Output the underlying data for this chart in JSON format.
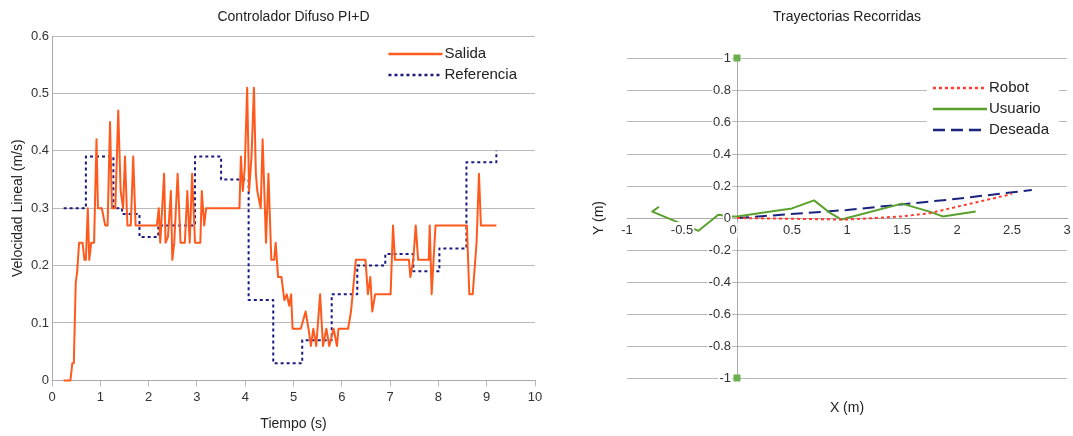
{
  "chart_data": [
    {
      "type": "line",
      "title": "Controlador Difuso PI+D",
      "xlabel": "Tiempo (s)",
      "ylabel": "Velocidad Lineal (m/s)",
      "xlim": [
        0,
        10
      ],
      "xticks": [
        0,
        1,
        2,
        3,
        4,
        5,
        6,
        7,
        8,
        9,
        10
      ],
      "ylim": [
        0,
        0.6
      ],
      "yticks": [
        0,
        0.1,
        0.2,
        0.3,
        0.4,
        0.5,
        0.6
      ],
      "grid": "y",
      "legend": "top right",
      "marker": "none",
      "series": [
        {
          "name": "Salida",
          "color": "#ff5a1e",
          "line_style": "solid",
          "x": [
            0.24,
            0.38,
            0.42,
            0.45,
            0.49,
            0.52,
            0.56,
            0.63,
            0.67,
            0.7,
            0.74,
            0.77,
            0.81,
            0.87,
            0.92,
            0.95,
            1.03,
            1.1,
            1.15,
            1.2,
            1.24,
            1.31,
            1.37,
            1.42,
            1.47,
            1.51,
            1.56,
            1.63,
            1.68,
            1.73,
            2.17,
            2.21,
            2.24,
            2.32,
            2.35,
            2.4,
            2.46,
            2.49,
            2.53,
            2.6,
            2.66,
            2.75,
            2.8,
            2.85,
            2.9,
            2.96,
            3.07,
            3.1,
            3.15,
            3.19,
            3.25,
            3.88,
            3.91,
            3.95,
            3.99,
            4.04,
            4.08,
            4.13,
            4.18,
            4.22,
            4.25,
            4.32,
            4.36,
            4.43,
            4.48,
            4.54,
            4.6,
            4.63,
            4.68,
            4.75,
            4.81,
            4.86,
            4.91,
            4.95,
            4.98,
            5.15,
            5.25,
            5.31,
            5.36,
            5.41,
            5.47,
            5.55,
            5.61,
            5.68,
            5.74,
            5.83,
            5.9,
            5.93,
            6.13,
            6.19,
            6.29,
            6.49,
            6.54,
            6.59,
            6.63,
            6.69,
            7.01,
            7.06,
            7.1,
            7.39,
            7.42,
            7.48,
            7.53,
            7.58,
            7.8,
            7.82,
            7.86,
            7.94,
            8.59,
            8.64,
            8.71,
            8.79,
            8.84,
            8.88,
            9.2
          ],
          "values": [
            0,
            0,
            0.03,
            0.03,
            0.17,
            0.19,
            0.24,
            0.24,
            0.21,
            0.21,
            0.3,
            0.21,
            0.24,
            0.24,
            0.42,
            0.3,
            0.3,
            0.27,
            0.27,
            0.45,
            0.3,
            0.3,
            0.47,
            0.33,
            0.3,
            0.39,
            0.27,
            0.27,
            0.39,
            0.27,
            0.27,
            0.3,
            0.24,
            0.36,
            0.24,
            0.25,
            0.33,
            0.21,
            0.24,
            0.36,
            0.24,
            0.24,
            0.33,
            0.24,
            0.36,
            0.24,
            0.24,
            0.33,
            0.27,
            0.3,
            0.3,
            0.3,
            0.39,
            0.33,
            0.37,
            0.51,
            0.33,
            0.39,
            0.51,
            0.36,
            0.33,
            0.3,
            0.42,
            0.24,
            0.36,
            0.21,
            0.21,
            0.24,
            0.18,
            0.18,
            0.14,
            0.15,
            0.13,
            0.15,
            0.09,
            0.09,
            0.12,
            0.09,
            0.06,
            0.09,
            0.06,
            0.15,
            0.06,
            0.09,
            0.06,
            0.09,
            0.06,
            0.09,
            0.09,
            0.12,
            0.21,
            0.21,
            0.15,
            0.18,
            0.12,
            0.15,
            0.15,
            0.27,
            0.21,
            0.21,
            0.18,
            0.21,
            0.27,
            0.21,
            0.21,
            0.27,
            0.15,
            0.27,
            0.27,
            0.15,
            0.15,
            0.24,
            0.36,
            0.27,
            0.27
          ]
        },
        {
          "name": "Referencia",
          "type": "step",
          "color": "#1a1a80",
          "line_style": "dotted",
          "x": [
            0.24,
            0.7,
            1.27,
            1.45,
            1.81,
            2.2,
            2.96,
            3.5,
            4.07,
            4.58,
            5.18,
            5.79,
            6.32,
            6.9,
            7.48,
            8.02,
            8.58,
            9.2
          ],
          "values": [
            0.3,
            0.39,
            0.3,
            0.29,
            0.25,
            0.27,
            0.39,
            0.35,
            0.14,
            0.03,
            0.07,
            0.15,
            0.2,
            0.22,
            0.19,
            0.23,
            0.38,
            0.4
          ]
        }
      ]
    },
    {
      "type": "line",
      "title": "Trayectorias Recorridas",
      "xlabel": "X (m)",
      "ylabel": "Y (m)",
      "xlim": [
        -1,
        3
      ],
      "xticks": [
        -1,
        -0.5,
        0,
        0.5,
        1,
        1.5,
        2,
        2.5,
        3
      ],
      "ylim": [
        -1,
        1
      ],
      "yticks": [
        -1,
        -0.8,
        -0.6,
        -0.4,
        -0.2,
        0,
        0.2,
        0.4,
        0.6,
        0.8,
        1
      ],
      "grid": "y",
      "legend": "top right",
      "marker": "none",
      "series": [
        {
          "name": "Robot",
          "color": "#ff3b2f",
          "line_style": "dotted",
          "x": [
            0,
            0.5,
            1,
            1.5,
            1.75,
            2,
            2.25,
            2.5
          ],
          "values": [
            0,
            -0.005,
            -0.01,
            0.01,
            0.03,
            0.07,
            0.11,
            0.15
          ]
        },
        {
          "name": "Usuario",
          "color": "#5aa02c",
          "line_style": "solid",
          "x": [
            -0.71,
            -0.77,
            -0.35,
            -0.17,
            -0.05,
            0,
            0.5,
            0.7,
            0.85,
            0.95,
            1,
            1.5,
            1.75,
            1.87,
            2.17
          ],
          "values": [
            0.07,
            0.04,
            -0.08,
            0.02,
            0.01,
            0.01,
            0.06,
            0.11,
            0.03,
            -0.01,
            0,
            0.09,
            0.04,
            0.01,
            0.04
          ]
        },
        {
          "name": "Deseada",
          "color": "#1a237e",
          "line_style": "dashed",
          "x": [
            0,
            1,
            2,
            2.68
          ],
          "values": [
            0,
            0.05,
            0.12,
            0.175
          ]
        },
        {
          "type": "scatter",
          "color": "#6ab04c",
          "marker": "square",
          "x": [
            0,
            0
          ],
          "values": [
            1,
            -1
          ]
        }
      ]
    }
  ]
}
